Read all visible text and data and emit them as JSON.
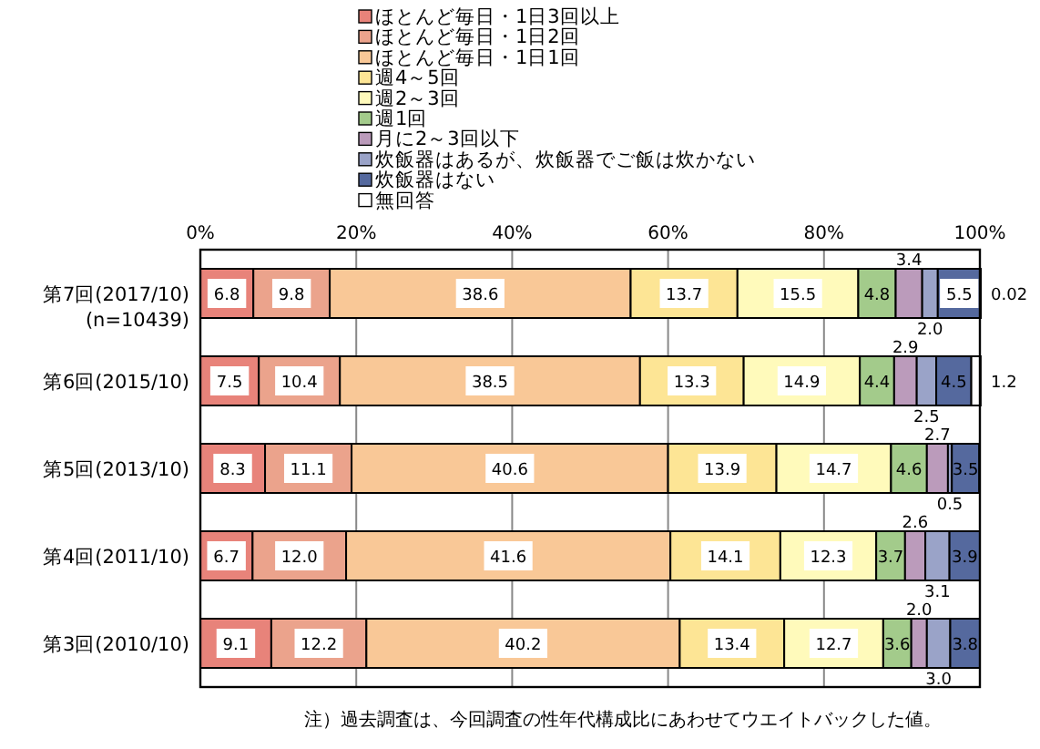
{
  "chart_data": {
    "type": "bar",
    "orientation": "horizontal",
    "stacked": true,
    "legend": "top",
    "grid": "x",
    "categories": [
      "第7回(2017/10)\n(n=10439)",
      "第6回(2015/10)",
      "第5回(2013/10)",
      "第4回(2011/10)",
      "第3回(2010/10)"
    ],
    "xlim": [
      0,
      100
    ],
    "xticks": [
      {
        "value": 0,
        "label": "0%"
      },
      {
        "value": 20,
        "label": "20%"
      },
      {
        "value": 40,
        "label": "40%"
      },
      {
        "value": 60,
        "label": "60%"
      },
      {
        "value": 80,
        "label": "80%"
      },
      {
        "value": 100,
        "label": "100%"
      }
    ],
    "series": [
      {
        "name": "ほとんど毎日・1日3回以上",
        "color": "#e8837a",
        "values": [
          6.8,
          7.5,
          8.3,
          6.7,
          9.1
        ],
        "value_labels": [
          "6.8",
          "7.5",
          "8.3",
          "6.7",
          "9.1"
        ]
      },
      {
        "name": "ほとんど毎日・1日2回",
        "color": "#eba38c",
        "values": [
          9.8,
          10.4,
          11.1,
          12.0,
          12.2
        ],
        "value_labels": [
          "9.8",
          "10.4",
          "11.1",
          "12.0",
          "12.2"
        ]
      },
      {
        "name": "ほとんど毎日・1日1回",
        "color": "#f9c897",
        "values": [
          38.6,
          38.5,
          40.6,
          41.6,
          40.2
        ],
        "value_labels": [
          "38.6",
          "38.5",
          "40.6",
          "41.6",
          "40.2"
        ]
      },
      {
        "name": "週4～5回",
        "color": "#fde595",
        "values": [
          13.7,
          13.3,
          13.9,
          14.1,
          13.4
        ],
        "value_labels": [
          "13.7",
          "13.3",
          "13.9",
          "14.1",
          "13.4"
        ]
      },
      {
        "name": "週2～3回",
        "color": "#fffabb",
        "values": [
          15.5,
          14.9,
          14.7,
          12.3,
          12.7
        ],
        "value_labels": [
          "15.5",
          "14.9",
          "14.7",
          "12.3",
          "12.7"
        ]
      },
      {
        "name": "週1回",
        "color": "#a3cb8b",
        "values": [
          4.8,
          4.4,
          4.6,
          3.7,
          3.6
        ],
        "value_labels": [
          "4.8",
          "4.4",
          "4.6",
          "3.7",
          "3.6"
        ]
      },
      {
        "name": "月に2～3回以下",
        "color": "#bb9bbb",
        "values": [
          3.4,
          2.9,
          2.7,
          2.6,
          2.0
        ],
        "value_labels": [
          "3.4",
          "2.9",
          "2.7",
          "2.6",
          "2.0"
        ]
      },
      {
        "name": "炊飯器はあるが、炊飯器でご飯は炊かない",
        "color": "#9aa3c8",
        "values": [
          2.0,
          2.5,
          0.5,
          3.1,
          3.0
        ],
        "value_labels": [
          "2.0",
          "2.5",
          "0.5",
          "3.1",
          "3.0"
        ]
      },
      {
        "name": "炊飯器はない",
        "color": "#55699e",
        "values": [
          5.5,
          4.5,
          3.5,
          3.9,
          3.8
        ],
        "value_labels": [
          "5.5",
          "4.5",
          "3.5",
          "3.9",
          "3.8"
        ]
      },
      {
        "name": "無回答",
        "color": "#ffffff",
        "values": [
          0.02,
          1.2,
          null,
          null,
          null
        ],
        "value_labels": [
          "0.02",
          "1.2",
          null,
          null,
          null
        ]
      }
    ],
    "annotations": [
      "注）過去調査は、今回調査の性年代構成比にあわせてウエイトバックした値。"
    ]
  }
}
